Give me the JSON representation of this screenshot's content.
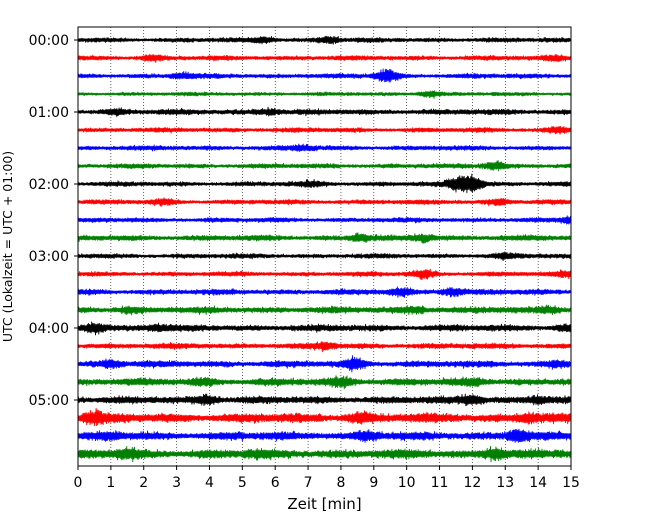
{
  "chart_data": {
    "type": "line",
    "title": "",
    "xlabel": "Zeit  [min]",
    "ylabel": "UTC (Lokalzeit = UTC + 01:00)",
    "xlim": [
      0,
      15
    ],
    "x_ticks": [
      0,
      1,
      2,
      3,
      4,
      5,
      6,
      7,
      8,
      9,
      10,
      11,
      12,
      13,
      14,
      15
    ],
    "x_tick_labels": [
      "0",
      "1",
      "2",
      "3",
      "4",
      "5",
      "6",
      "7",
      "8",
      "9",
      "10",
      "11",
      "12",
      "13",
      "14",
      "15"
    ],
    "y_tick_labels": [
      "00:00",
      "01:00",
      "02:00",
      "03:00",
      "04:00",
      "05:00"
    ],
    "grid": "vertical dotted lines at each minute",
    "trace_interval_minutes": 15,
    "trace_colors": [
      "#000000",
      "#ff0000",
      "#0000ff",
      "#008000"
    ],
    "trace_count": 24,
    "traces": [
      {
        "start": "00:00",
        "color": "#000000",
        "amplitude": 2.5,
        "events": [
          {
            "t": 5.6,
            "a": 4
          },
          {
            "t": 7.6,
            "a": 4
          }
        ]
      },
      {
        "start": "00:15",
        "color": "#ff0000",
        "amplitude": 2.5,
        "events": [
          {
            "t": 2.3,
            "a": 4
          },
          {
            "t": 14.5,
            "a": 4
          }
        ]
      },
      {
        "start": "00:30",
        "color": "#0000ff",
        "amplitude": 2.5,
        "events": [
          {
            "t": 9.4,
            "a": 7
          },
          {
            "t": 3.2,
            "a": 4
          }
        ]
      },
      {
        "start": "00:45",
        "color": "#008000",
        "amplitude": 2,
        "events": [
          {
            "t": 10.7,
            "a": 3.5
          }
        ]
      },
      {
        "start": "01:00",
        "color": "#000000",
        "amplitude": 3,
        "events": [
          {
            "t": 1.2,
            "a": 4
          },
          {
            "t": 5.8,
            "a": 4
          }
        ]
      },
      {
        "start": "01:15",
        "color": "#ff0000",
        "amplitude": 2.5,
        "events": [
          {
            "t": 14.6,
            "a": 4
          }
        ]
      },
      {
        "start": "01:30",
        "color": "#0000ff",
        "amplitude": 2.5,
        "events": [
          {
            "t": 6.8,
            "a": 4
          }
        ]
      },
      {
        "start": "01:45",
        "color": "#008000",
        "amplitude": 2.5,
        "events": [
          {
            "t": 12.7,
            "a": 5
          }
        ]
      },
      {
        "start": "02:00",
        "color": "#000000",
        "amplitude": 2.5,
        "events": [
          {
            "t": 11.6,
            "a": 8
          },
          {
            "t": 12.0,
            "a": 9
          },
          {
            "t": 7.1,
            "a": 4
          }
        ]
      },
      {
        "start": "02:15",
        "color": "#ff0000",
        "amplitude": 2.5,
        "events": [
          {
            "t": 2.6,
            "a": 4
          },
          {
            "t": 12.8,
            "a": 4
          }
        ]
      },
      {
        "start": "02:30",
        "color": "#0000ff",
        "amplitude": 2.5,
        "events": [
          {
            "t": 15.0,
            "a": 4
          }
        ]
      },
      {
        "start": "02:45",
        "color": "#008000",
        "amplitude": 3,
        "events": [
          {
            "t": 8.6,
            "a": 4.5
          },
          {
            "t": 10.5,
            "a": 4.5
          }
        ]
      },
      {
        "start": "03:00",
        "color": "#000000",
        "amplitude": 2.5,
        "events": [
          {
            "t": 13.0,
            "a": 4
          }
        ]
      },
      {
        "start": "03:15",
        "color": "#ff0000",
        "amplitude": 2.5,
        "events": [
          {
            "t": 10.5,
            "a": 5
          },
          {
            "t": 14.8,
            "a": 4
          }
        ]
      },
      {
        "start": "03:30",
        "color": "#0000ff",
        "amplitude": 3,
        "events": [
          {
            "t": 9.8,
            "a": 5
          },
          {
            "t": 11.4,
            "a": 5
          }
        ]
      },
      {
        "start": "03:45",
        "color": "#008000",
        "amplitude": 3.5,
        "events": [
          {
            "t": 1.6,
            "a": 4.5
          },
          {
            "t": 10.2,
            "a": 4.5
          },
          {
            "t": 14.3,
            "a": 4.5
          }
        ]
      },
      {
        "start": "04:00",
        "color": "#000000",
        "amplitude": 3.5,
        "events": [
          {
            "t": 0.5,
            "a": 6
          },
          {
            "t": 2.4,
            "a": 4.5
          },
          {
            "t": 14.9,
            "a": 4.5
          }
        ]
      },
      {
        "start": "04:15",
        "color": "#ff0000",
        "amplitude": 3,
        "events": [
          {
            "t": 7.5,
            "a": 5
          }
        ]
      },
      {
        "start": "04:30",
        "color": "#0000ff",
        "amplitude": 3.5,
        "events": [
          {
            "t": 8.4,
            "a": 7
          },
          {
            "t": 1.0,
            "a": 5
          },
          {
            "t": 14.6,
            "a": 4.5
          }
        ]
      },
      {
        "start": "04:45",
        "color": "#008000",
        "amplitude": 4,
        "events": [
          {
            "t": 8.0,
            "a": 6
          },
          {
            "t": 12.0,
            "a": 5
          },
          {
            "t": 3.8,
            "a": 5
          }
        ]
      },
      {
        "start": "05:00",
        "color": "#000000",
        "amplitude": 4,
        "events": [
          {
            "t": 3.9,
            "a": 6
          },
          {
            "t": 12.0,
            "a": 6
          },
          {
            "t": 14.0,
            "a": 5
          }
        ]
      },
      {
        "start": "05:15",
        "color": "#ff0000",
        "amplitude": 5,
        "events": [
          {
            "t": 0.5,
            "a": 8
          },
          {
            "t": 8.6,
            "a": 7
          },
          {
            "t": 13.7,
            "a": 6
          }
        ]
      },
      {
        "start": "05:30",
        "color": "#0000ff",
        "amplitude": 4.5,
        "events": [
          {
            "t": 13.4,
            "a": 8
          },
          {
            "t": 8.8,
            "a": 6
          },
          {
            "t": 1.0,
            "a": 5.5
          }
        ]
      },
      {
        "start": "05:45",
        "color": "#008000",
        "amplitude": 5,
        "events": [
          {
            "t": 1.5,
            "a": 7
          },
          {
            "t": 12.7,
            "a": 7
          },
          {
            "t": 5.5,
            "a": 5.5
          }
        ]
      }
    ]
  }
}
